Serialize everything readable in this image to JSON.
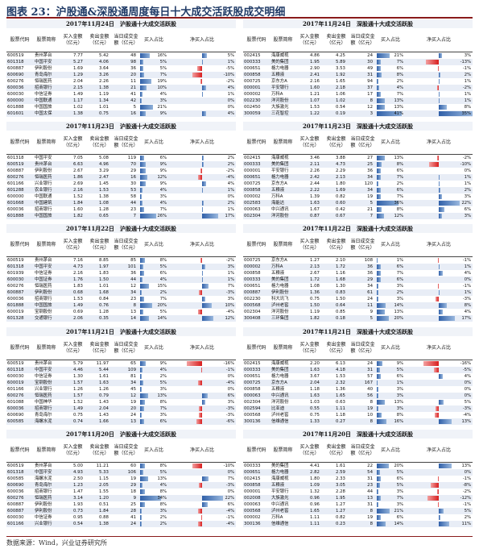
{
  "figure_title": "图表 23：沪股通&深股通周度每日十大成交活跃股成交明细",
  "source": "数据来源：Wind，兴业证券研究所",
  "columns": {
    "code": "股票代码",
    "name": "股票简称",
    "buy": "买入金额（亿元）",
    "sell": "卖出金额（亿元）",
    "ratio": "当日成交金额（亿元）",
    "buy_pct": "买入占比",
    "net_buy": "净买入占比"
  },
  "panels": [
    {
      "title": "2017年11月24日　沪股通十大成交活跃股",
      "rows": [
        [
          "600519",
          "贵州茅台",
          "7.77",
          "5.42",
          "48",
          16,
          5
        ],
        [
          "601318",
          "中国平安",
          "5.27",
          "4.06",
          "98",
          5,
          1
        ],
        [
          "600887",
          "伊利股份",
          "1.69",
          "3.64",
          "36",
          5,
          -5
        ],
        [
          "600690",
          "青岛海尔",
          "1.29",
          "3.26",
          "20",
          7,
          -10
        ],
        [
          "600276",
          "恒瑞医药",
          "2.04",
          "2.26",
          "11",
          19,
          -2
        ],
        [
          "600036",
          "招商银行",
          "2.15",
          "1.38",
          "21",
          10,
          4
        ],
        [
          "600030",
          "中信证券",
          "1.49",
          "1.19",
          "41",
          4,
          1
        ],
        [
          "600000",
          "中国联通",
          "1.17",
          "1.34",
          "42",
          3,
          0
        ],
        [
          "601888",
          "中国国旅",
          "1.02",
          "1.01",
          "5",
          21,
          0
        ],
        [
          "601601",
          "中国太保",
          "1.38",
          "0.75",
          "16",
          9,
          4
        ]
      ]
    },
    {
      "title": "2017年11月24日　深股通十大成交活跃股",
      "rows": [
        [
          "002415",
          "海康威视",
          "4.86",
          "4.25",
          "24",
          21,
          3
        ],
        [
          "000333",
          "美的集团",
          "1.95",
          "5.89",
          "30",
          7,
          -13
        ],
        [
          "000651",
          "格力电器",
          "2.90",
          "3.53",
          "49",
          6,
          -1
        ],
        [
          "000858",
          "五粮液",
          "2.41",
          "1.92",
          "31",
          8,
          2
        ],
        [
          "000725",
          "京东方A",
          "2.16",
          "1.65",
          "94",
          2,
          1
        ],
        [
          "000001",
          "平安银行",
          "1.60",
          "2.18",
          "37",
          4,
          -2
        ],
        [
          "000002",
          "万科A",
          "1.21",
          "1.06",
          "17",
          7,
          1
        ],
        [
          "002230",
          "洋河股份",
          "1.07",
          "1.02",
          "8",
          13,
          1
        ],
        [
          "002450",
          "大族激光",
          "1.53",
          "0.54",
          "12",
          13,
          8
        ],
        [
          "300059",
          "三花智控",
          "1.22",
          "0.19",
          "3",
          41,
          35
        ]
      ]
    },
    {
      "title": "2017年11月23日　沪股通十大成交活跃股",
      "rows": [
        [
          "601318",
          "中国平安",
          "7.05",
          "5.08",
          "119",
          6,
          2
        ],
        [
          "600519",
          "贵州茅台",
          "6.63",
          "4.96",
          "70",
          9,
          2
        ],
        [
          "600887",
          "伊利股份",
          "2.67",
          "3.29",
          "29",
          9,
          -2
        ],
        [
          "600276",
          "恒瑞医药",
          "1.86",
          "2.47",
          "16",
          12,
          -4
        ],
        [
          "601166",
          "兴业银行",
          "2.69",
          "1.45",
          "30",
          9,
          4
        ],
        [
          "601288",
          "农业银行",
          "2.16",
          "1.53",
          "53",
          4,
          1
        ],
        [
          "600000",
          "中国联通",
          "1.52",
          "1.38",
          "58",
          3,
          0
        ],
        [
          "601668",
          "中国建筑",
          "1.84",
          "1.08",
          "44",
          4,
          2
        ],
        [
          "600036",
          "招商银行",
          "1.60",
          "1.28",
          "23",
          7,
          1
        ],
        [
          "601888",
          "中国国旅",
          "1.82",
          "0.65",
          "7",
          26,
          17
        ]
      ]
    },
    {
      "title": "2017年11月23日　深股通十大成交活跃股",
      "rows": [
        [
          "002415",
          "海康威视",
          "3.46",
          "3.88",
          "27",
          13,
          -2
        ],
        [
          "000333",
          "美的集团",
          "2.11",
          "4.73",
          "25",
          8,
          -10
        ],
        [
          "000001",
          "平安银行",
          "2.26",
          "2.29",
          "36",
          6,
          0
        ],
        [
          "000651",
          "格力电器",
          "2.42",
          "2.13",
          "34",
          7,
          1
        ],
        [
          "000725",
          "京东方A",
          "2.44",
          "1.80",
          "120",
          2,
          1
        ],
        [
          "000858",
          "五粮液",
          "2.22",
          "1.69",
          "34",
          6,
          2
        ],
        [
          "000002",
          "万科A",
          "1.39",
          "0.82",
          "19",
          7,
          3
        ],
        [
          "002583",
          "海能达",
          "1.63",
          "0.60",
          "5",
          36,
          22
        ],
        [
          "000063",
          "中兴通讯",
          "1.67",
          "0.42",
          "21",
          8,
          6
        ],
        [
          "002304",
          "洋河股份",
          "0.87",
          "0.67",
          "7",
          12,
          3
        ]
      ]
    },
    {
      "title": "2017年11月22日　沪股通十大成交活跃股",
      "rows": [
        [
          "600519",
          "贵州茅台",
          "7.16",
          "8.85",
          "85",
          8,
          -2
        ],
        [
          "601318",
          "中国平安",
          "4.73",
          "1.97",
          "101",
          5,
          3
        ],
        [
          "601939",
          "中信证券",
          "2.16",
          "1.83",
          "36",
          6,
          1
        ],
        [
          "600030",
          "中国证券",
          "1.76",
          "1.50",
          "44",
          4,
          1
        ],
        [
          "600276",
          "恒瑞医药",
          "1.83",
          "1.01",
          "12",
          15,
          7
        ],
        [
          "600887",
          "伊利股份",
          "0.68",
          "1.68",
          "34",
          2,
          -3
        ],
        [
          "600036",
          "招商银行",
          "1.53",
          "0.84",
          "23",
          7,
          3
        ],
        [
          "601888",
          "中国国旅",
          "1.49",
          "0.76",
          "8",
          20,
          10
        ],
        [
          "600019",
          "宝钢股份",
          "0.69",
          "1.28",
          "13",
          5,
          -4
        ],
        [
          "601328",
          "交通银行",
          "2.06",
          "0.35",
          "14",
          14,
          12
        ]
      ]
    },
    {
      "title": "2017年11月22日　深股通十大成交活跃股",
      "rows": [
        [
          "000725",
          "京东方A",
          "1.27",
          "2.10",
          "108",
          1,
          -1
        ],
        [
          "000002",
          "万科A",
          "2.13",
          "1.72",
          "36",
          6,
          1
        ],
        [
          "000858",
          "五粮液",
          "2.67",
          "1.16",
          "36",
          7,
          4
        ],
        [
          "000333",
          "美的集团",
          "1.72",
          "1.68",
          "29",
          6,
          0
        ],
        [
          "000651",
          "格力电器",
          "1.08",
          "1.30",
          "34",
          3,
          -1
        ],
        [
          "000887",
          "伊利股份",
          "1.36",
          "0.83",
          "61",
          2,
          1
        ],
        [
          "002230",
          "科大讯飞",
          "0.75",
          "1.50",
          "24",
          3,
          -3
        ],
        [
          "000568",
          "泸州老窖",
          "1.50",
          "0.64",
          "11",
          14,
          8
        ],
        [
          "002304",
          "洋河股份",
          "1.19",
          "0.85",
          "9",
          13,
          4
        ],
        [
          "300408",
          "三环集团",
          "1.82",
          "0.18",
          "5",
          20,
          17
        ]
      ]
    },
    {
      "title": "2017年11月21日　沪股通十大成交活跃股",
      "rows": [
        [
          "600519",
          "贵州茅台",
          "5.79",
          "11.97",
          "65",
          9,
          -16
        ],
        [
          "601318",
          "中国平安",
          "4.46",
          "5.44",
          "109",
          4,
          -1
        ],
        [
          "600030",
          "中信证券",
          "1.30",
          "1.61",
          "81",
          2,
          0
        ],
        [
          "600019",
          "宝钢股份",
          "1.57",
          "1.63",
          "34",
          5,
          -4
        ],
        [
          "601166",
          "兴业银行",
          "1.26",
          "1.26",
          "45",
          3,
          0
        ],
        [
          "600276",
          "恒瑞医药",
          "1.57",
          "0.79",
          "12",
          13,
          6
        ],
        [
          "601088",
          "中国神华",
          "1.52",
          "1.43",
          "19",
          8,
          3
        ],
        [
          "600036",
          "招商银行",
          "1.49",
          "2.04",
          "20",
          7,
          -3
        ],
        [
          "600690",
          "青岛海尔",
          "0.75",
          "1.43",
          "24",
          3,
          -3
        ],
        [
          "600585",
          "海螺水泥",
          "0.74",
          "1.66",
          "13",
          6,
          -6
        ]
      ]
    },
    {
      "title": "2017年11月21日　深股通十大成交活跃股",
      "rows": [
        [
          "002415",
          "海康威视",
          "2.20",
          "6.13",
          "24",
          9,
          -16
        ],
        [
          "000333",
          "美的集团",
          "1.63",
          "4.18",
          "31",
          5,
          -5
        ],
        [
          "000651",
          "格力电器",
          "3.67",
          "1.53",
          "57",
          6,
          4
        ],
        [
          "000725",
          "京东方A",
          "2.04",
          "2.32",
          "167",
          1,
          0
        ],
        [
          "000858",
          "五粮液",
          "1.18",
          "1.36",
          "40",
          3,
          0
        ],
        [
          "000063",
          "中兴通讯",
          "1.63",
          "1.65",
          "56",
          3,
          0
        ],
        [
          "002304",
          "洋河股份",
          "1.03",
          "0.63",
          "8",
          13,
          5
        ],
        [
          "002594",
          "比亚迪",
          "0.55",
          "1.11",
          "19",
          3,
          -3
        ],
        [
          "000568",
          "泸州老窖",
          "0.75",
          "1.18",
          "10",
          8,
          -4
        ],
        [
          "300136",
          "信维通信",
          "1.33",
          "0.27",
          "8",
          16,
          13
        ]
      ]
    },
    {
      "title": "2017年11月20日　沪股通十大成交活跃股",
      "rows": [
        [
          "600519",
          "贵州茅台",
          "5.00",
          "11.21",
          "60",
          8,
          -10
        ],
        [
          "601318",
          "中国平安",
          "4.93",
          "5.33",
          "106",
          5,
          0
        ],
        [
          "600585",
          "海螺水泥",
          "2.50",
          "1.15",
          "19",
          13,
          7
        ],
        [
          "600690",
          "青岛海尔",
          "1.23",
          "2.05",
          "29",
          4,
          -3
        ],
        [
          "600036",
          "招商银行",
          "1.47",
          "1.55",
          "18",
          8,
          0
        ],
        [
          "600276",
          "恒瑞医药",
          "3.14",
          "1.20",
          "9",
          34,
          22
        ],
        [
          "600887",
          "伊利股份",
          "1.93",
          "0.51",
          "25",
          8,
          6
        ],
        [
          "600887",
          "伊利股份",
          "0.73",
          "1.84",
          "28",
          3,
          -4
        ],
        [
          "600030",
          "中信证券",
          "0.95",
          "0.88",
          "41",
          2,
          -1
        ],
        [
          "601166",
          "兴业银行",
          "0.54",
          "1.38",
          "24",
          2,
          -4
        ]
      ]
    },
    {
      "title": "2017年11月20日　深股通十大成交活跃股",
      "rows": [
        [
          "000333",
          "美的集团",
          "4.41",
          "1.61",
          "22",
          20,
          13
        ],
        [
          "000651",
          "格力电器",
          "2.82",
          "2.59",
          "54",
          5,
          0
        ],
        [
          "002415",
          "海康威视",
          "1.80",
          "2.33",
          "31",
          6,
          -1
        ],
        [
          "000858",
          "五粮液",
          "1.09",
          "3.05",
          "23",
          5,
          -8
        ],
        [
          "000001",
          "平安银行",
          "1.32",
          "2.28",
          "44",
          3,
          -2
        ],
        [
          "002008",
          "大族激光",
          "0.96",
          "1.95",
          "13",
          7,
          -12
        ],
        [
          "000063",
          "中兴通讯",
          "0.96",
          "1.27",
          "31",
          3,
          -1
        ],
        [
          "000568",
          "泸州老窖",
          "1.65",
          "1.27",
          "8",
          21,
          5
        ],
        [
          "000002",
          "万科A",
          "1.11",
          "0.82",
          "19",
          6,
          2
        ],
        [
          "300136",
          "信维通信",
          "1.11",
          "0.23",
          "8",
          14,
          11
        ]
      ]
    }
  ]
}
